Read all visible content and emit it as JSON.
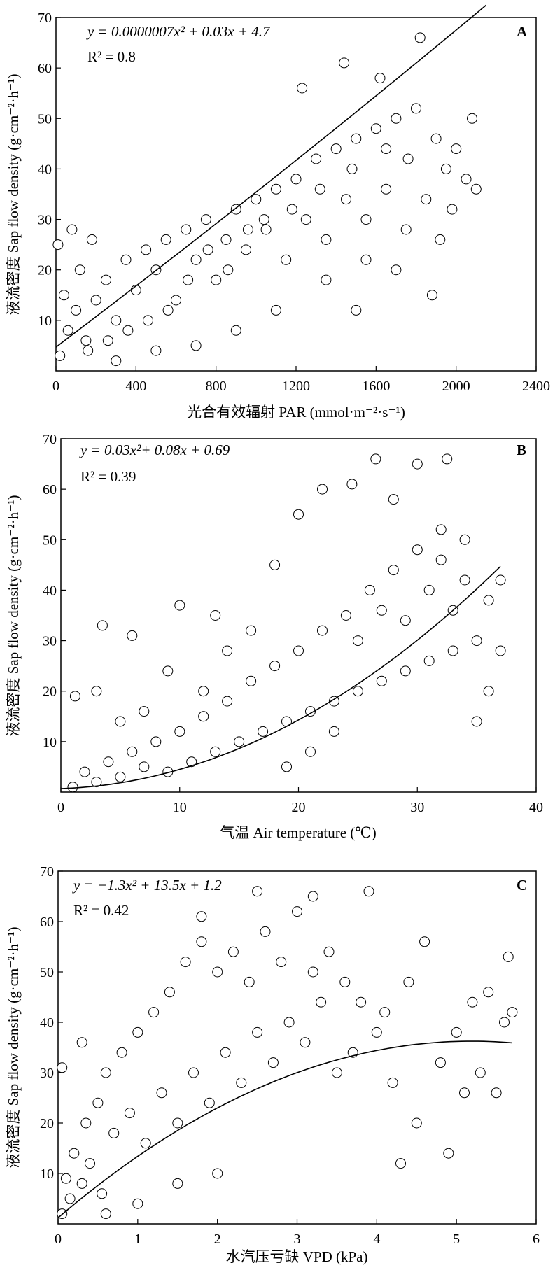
{
  "chart_data": [
    {
      "type": "scatter",
      "panel": "A",
      "equation": "y = 0.0000007x² + 0.03x + 4.7",
      "r2": "R² = 0.8",
      "xlabel": "光合有效辐射 PAR (mmol·m⁻²·s⁻¹)",
      "ylabel": "液流密度 Sap flow density (g·cm⁻²·h⁻¹)",
      "xlim": [
        0,
        2400
      ],
      "ylim": [
        0,
        70
      ],
      "x_ticks": [
        "0",
        "400",
        "800",
        "1200",
        "1600",
        "2000",
        "2400"
      ],
      "y_ticks": [
        "10",
        "20",
        "30",
        "40",
        "50",
        "60",
        "70"
      ],
      "fit": {
        "a": 7e-07,
        "b": 0.03,
        "c": 4.7,
        "x_range": [
          0,
          2150
        ]
      },
      "points": [
        [
          20,
          3
        ],
        [
          60,
          8
        ],
        [
          100,
          12
        ],
        [
          150,
          6
        ],
        [
          200,
          14
        ],
        [
          250,
          18
        ],
        [
          300,
          10
        ],
        [
          350,
          22
        ],
        [
          400,
          16
        ],
        [
          450,
          24
        ],
        [
          500,
          20
        ],
        [
          550,
          26
        ],
        [
          600,
          14
        ],
        [
          650,
          28
        ],
        [
          700,
          22
        ],
        [
          750,
          30
        ],
        [
          800,
          18
        ],
        [
          850,
          26
        ],
        [
          900,
          32
        ],
        [
          950,
          24
        ],
        [
          1000,
          34
        ],
        [
          1050,
          28
        ],
        [
          1100,
          36
        ],
        [
          1150,
          22
        ],
        [
          1200,
          38
        ],
        [
          1250,
          30
        ],
        [
          1300,
          42
        ],
        [
          1350,
          26
        ],
        [
          1400,
          44
        ],
        [
          1450,
          34
        ],
        [
          1500,
          46
        ],
        [
          1550,
          30
        ],
        [
          1600,
          48
        ],
        [
          1650,
          36
        ],
        [
          1700,
          50
        ],
        [
          1750,
          28
        ],
        [
          1800,
          52
        ],
        [
          1850,
          34
        ],
        [
          1900,
          46
        ],
        [
          1950,
          40
        ],
        [
          2000,
          44
        ],
        [
          2050,
          38
        ],
        [
          2100,
          36
        ],
        [
          1820,
          66
        ],
        [
          1440,
          61
        ],
        [
          1620,
          58
        ],
        [
          1230,
          56
        ],
        [
          1700,
          20
        ],
        [
          1880,
          15
        ],
        [
          1920,
          26
        ],
        [
          1100,
          12
        ],
        [
          900,
          8
        ],
        [
          700,
          5
        ],
        [
          500,
          4
        ],
        [
          300,
          2
        ],
        [
          180,
          26
        ],
        [
          120,
          20
        ],
        [
          80,
          28
        ],
        [
          40,
          15
        ],
        [
          10,
          25
        ],
        [
          1350,
          18
        ],
        [
          1550,
          22
        ],
        [
          1760,
          42
        ],
        [
          1980,
          32
        ],
        [
          2080,
          50
        ],
        [
          1650,
          44
        ],
        [
          1480,
          40
        ],
        [
          1320,
          36
        ],
        [
          1180,
          32
        ],
        [
          1040,
          30
        ],
        [
          960,
          28
        ],
        [
          860,
          20
        ],
        [
          760,
          24
        ],
        [
          660,
          18
        ],
        [
          560,
          12
        ],
        [
          460,
          10
        ],
        [
          360,
          8
        ],
        [
          260,
          6
        ],
        [
          160,
          4
        ],
        [
          1500,
          12
        ]
      ]
    },
    {
      "type": "scatter",
      "panel": "B",
      "equation": "y = 0.03x²+ 0.08x + 0.69",
      "r2": "R² = 0.39",
      "xlabel": "气温 Air temperature (℃)",
      "ylabel": "液流密度 Sap flow density (g·cm⁻²·h⁻¹)",
      "xlim": [
        0,
        40
      ],
      "ylim": [
        0,
        70
      ],
      "x_ticks": [
        "0",
        "10",
        "20",
        "30",
        "40"
      ],
      "y_ticks": [
        "10",
        "20",
        "30",
        "40",
        "50",
        "60",
        "70"
      ],
      "fit": {
        "a": 0.03,
        "b": 0.08,
        "c": 0.69,
        "x_range": [
          0,
          37
        ]
      },
      "points": [
        [
          1,
          1
        ],
        [
          2,
          4
        ],
        [
          3,
          2
        ],
        [
          4,
          6
        ],
        [
          5,
          3
        ],
        [
          6,
          8
        ],
        [
          7,
          5
        ],
        [
          8,
          10
        ],
        [
          9,
          4
        ],
        [
          10,
          12
        ],
        [
          11,
          6
        ],
        [
          12,
          15
        ],
        [
          13,
          8
        ],
        [
          14,
          18
        ],
        [
          15,
          10
        ],
        [
          16,
          22
        ],
        [
          17,
          12
        ],
        [
          18,
          25
        ],
        [
          19,
          14
        ],
        [
          20,
          28
        ],
        [
          21,
          16
        ],
        [
          22,
          32
        ],
        [
          23,
          18
        ],
        [
          24,
          35
        ],
        [
          25,
          20
        ],
        [
          26,
          40
        ],
        [
          27,
          22
        ],
        [
          28,
          44
        ],
        [
          29,
          24
        ],
        [
          30,
          48
        ],
        [
          31,
          26
        ],
        [
          32,
          46
        ],
        [
          33,
          28
        ],
        [
          34,
          42
        ],
        [
          35,
          30
        ],
        [
          36,
          38
        ],
        [
          37,
          42
        ],
        [
          1.2,
          19
        ],
        [
          3.5,
          33
        ],
        [
          6,
          31
        ],
        [
          10,
          37
        ],
        [
          13,
          35
        ],
        [
          26.5,
          66
        ],
        [
          30,
          65
        ],
        [
          32.5,
          66
        ],
        [
          20,
          55
        ],
        [
          22,
          60
        ],
        [
          24.5,
          61
        ],
        [
          28,
          58
        ],
        [
          18,
          45
        ],
        [
          16,
          32
        ],
        [
          14,
          28
        ],
        [
          12,
          20
        ],
        [
          9,
          24
        ],
        [
          7,
          16
        ],
        [
          5,
          14
        ],
        [
          3,
          20
        ],
        [
          19,
          5
        ],
        [
          21,
          8
        ],
        [
          23,
          12
        ],
        [
          25,
          30
        ],
        [
          27,
          36
        ],
        [
          29,
          34
        ],
        [
          31,
          40
        ],
        [
          33,
          36
        ],
        [
          35,
          14
        ],
        [
          36,
          20
        ],
        [
          37,
          28
        ],
        [
          34,
          50
        ],
        [
          32,
          52
        ]
      ]
    },
    {
      "type": "scatter",
      "panel": "C",
      "equation": "y = −1.3x² + 13.5x + 1.2",
      "r2": "R² = 0.42",
      "xlabel": "水汽压亏缺 VPD (kPa)",
      "ylabel": "液流密度 Sap flow density (g·cm⁻²·h⁻¹)",
      "xlim": [
        0,
        6
      ],
      "ylim": [
        0,
        70
      ],
      "x_ticks": [
        "0",
        "1",
        "2",
        "3",
        "4",
        "5",
        "6"
      ],
      "y_ticks": [
        "10",
        "20",
        "30",
        "40",
        "50",
        "60",
        "70"
      ],
      "fit": {
        "a": -1.3,
        "b": 13.5,
        "c": 1.2,
        "x_range": [
          0,
          5.7
        ]
      },
      "points": [
        [
          0.05,
          2
        ],
        [
          0.1,
          9
        ],
        [
          0.15,
          5
        ],
        [
          0.2,
          14
        ],
        [
          0.3,
          8
        ],
        [
          0.35,
          20
        ],
        [
          0.4,
          12
        ],
        [
          0.5,
          24
        ],
        [
          0.55,
          6
        ],
        [
          0.6,
          30
        ],
        [
          0.7,
          18
        ],
        [
          0.8,
          34
        ],
        [
          0.9,
          22
        ],
        [
          1.0,
          38
        ],
        [
          1.1,
          16
        ],
        [
          1.2,
          42
        ],
        [
          1.3,
          26
        ],
        [
          1.4,
          46
        ],
        [
          1.5,
          20
        ],
        [
          1.6,
          52
        ],
        [
          1.7,
          30
        ],
        [
          1.8,
          56
        ],
        [
          1.9,
          24
        ],
        [
          2.0,
          50
        ],
        [
          2.1,
          34
        ],
        [
          2.2,
          54
        ],
        [
          2.3,
          28
        ],
        [
          2.4,
          48
        ],
        [
          2.5,
          38
        ],
        [
          2.6,
          58
        ],
        [
          2.7,
          32
        ],
        [
          2.8,
          52
        ],
        [
          2.9,
          40
        ],
        [
          3.0,
          62
        ],
        [
          3.1,
          36
        ],
        [
          3.2,
          50
        ],
        [
          3.3,
          44
        ],
        [
          3.4,
          54
        ],
        [
          3.5,
          30
        ],
        [
          3.6,
          48
        ],
        [
          3.7,
          34
        ],
        [
          3.8,
          44
        ],
        [
          3.9,
          66
        ],
        [
          4.0,
          38
        ],
        [
          4.1,
          42
        ],
        [
          4.2,
          28
        ],
        [
          4.4,
          48
        ],
        [
          4.5,
          20
        ],
        [
          4.6,
          56
        ],
        [
          4.8,
          32
        ],
        [
          5.0,
          38
        ],
        [
          5.1,
          26
        ],
        [
          5.2,
          44
        ],
        [
          5.3,
          30
        ],
        [
          5.4,
          46
        ],
        [
          5.5,
          26
        ],
        [
          5.6,
          40
        ],
        [
          5.65,
          53
        ],
        [
          5.7,
          42
        ],
        [
          0.3,
          36
        ],
        [
          0.05,
          31
        ],
        [
          2.5,
          66
        ],
        [
          3.2,
          65
        ],
        [
          1.8,
          61
        ],
        [
          0.6,
          2
        ],
        [
          1.0,
          4
        ],
        [
          1.5,
          8
        ],
        [
          2.0,
          10
        ],
        [
          4.3,
          12
        ],
        [
          4.9,
          14
        ]
      ]
    }
  ]
}
